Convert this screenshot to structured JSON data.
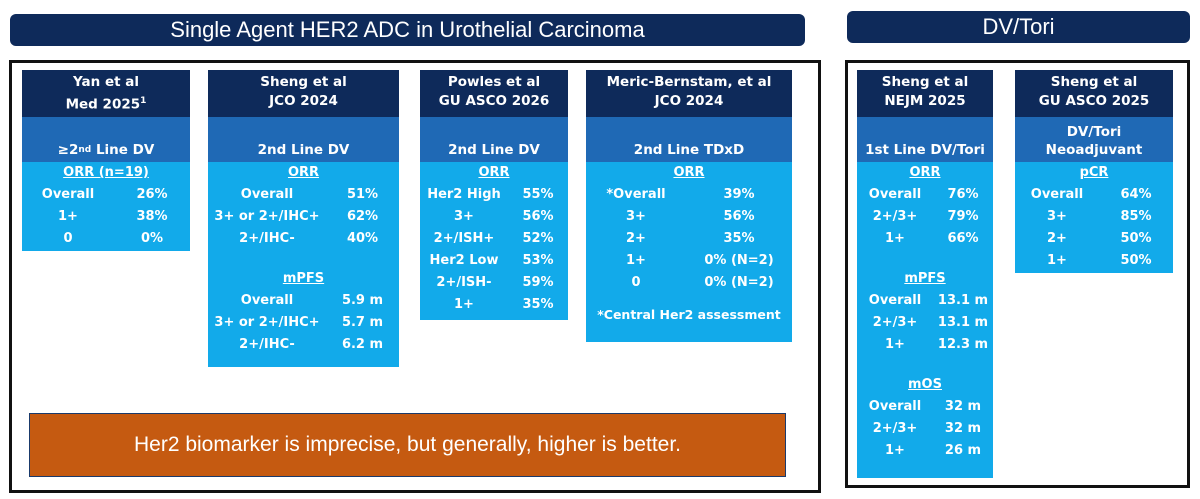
{
  "left_banner": "Single Agent HER2 ADC in Urothelial Carcinoma",
  "right_banner": "DV/Tori",
  "callout": "Her2 biomarker is imprecise, but generally, higher is better.",
  "yan": {
    "head1": "Yan et al",
    "head2": "Med 2025",
    "head2_sup": "1",
    "sub_prefix": "≥2",
    "sub_sup": "nd",
    "sub_suffix": " Line DV",
    "orr_label": "ORR (n=19)",
    "rows": [
      {
        "k": "Overall",
        "v": "26%"
      },
      {
        "k": "1+",
        "v": "38%"
      },
      {
        "k": "0",
        "v": "0%"
      }
    ]
  },
  "sheng_jco": {
    "head1": "Sheng et al",
    "head2": "JCO 2024",
    "sub": "2nd Line DV",
    "orr_label": "ORR",
    "orr_rows": [
      {
        "k": "Overall",
        "v": "51%"
      },
      {
        "k": "3+ or 2+/IHC+",
        "v": "62%"
      },
      {
        "k": "2+/IHC-",
        "v": "40%"
      }
    ],
    "pfs_label": "mPFS",
    "pfs_rows": [
      {
        "k": "Overall",
        "v": "5.9 m"
      },
      {
        "k": "3+ or 2+/IHC+",
        "v": "5.7 m"
      },
      {
        "k": "2+/IHC-",
        "v": "6.2 m"
      }
    ]
  },
  "powles": {
    "head1": "Powles et al",
    "head2": "GU ASCO 2026",
    "sub": "2nd Line DV",
    "orr_label": "ORR",
    "rows": [
      {
        "k": "Her2 High",
        "v": "55%"
      },
      {
        "k": "3+",
        "v": "56%"
      },
      {
        "k": "2+/ISH+",
        "v": "52%"
      },
      {
        "k": "Her2 Low",
        "v": "53%"
      },
      {
        "k": "2+/ISH-",
        "v": "59%"
      },
      {
        "k": "1+",
        "v": "35%"
      }
    ]
  },
  "meric": {
    "head1": "Meric-Bernstam, et al",
    "head2": "JCO 2024",
    "sub": "2nd Line TDxD",
    "orr_label": "ORR",
    "rows": [
      {
        "k": "*Overall",
        "v": "39%"
      },
      {
        "k": "3+",
        "v": "56%"
      },
      {
        "k": "2+",
        "v": "35%"
      },
      {
        "k": "1+",
        "v": "0% (N=2)"
      },
      {
        "k": "0",
        "v": "0% (N=2)"
      }
    ],
    "note": "*Central Her2 assessment"
  },
  "sheng_nejm": {
    "head1": "Sheng et al",
    "head2": "NEJM 2025",
    "sub": "1st Line DV/Tori",
    "orr_label": "ORR",
    "orr_rows": [
      {
        "k": "Overall",
        "v": "76%"
      },
      {
        "k": "2+/3+",
        "v": "79%"
      },
      {
        "k": "1+",
        "v": "66%"
      }
    ],
    "pfs_label": "mPFS",
    "pfs_rows": [
      {
        "k": "Overall",
        "v": "13.1 m"
      },
      {
        "k": "2+/3+",
        "v": "13.1 m"
      },
      {
        "k": "1+",
        "v": "12.3 m"
      }
    ],
    "os_label": "mOS",
    "os_rows": [
      {
        "k": "Overall",
        "v": "32 m"
      },
      {
        "k": "2+/3+",
        "v": "32 m"
      },
      {
        "k": "1+",
        "v": "26 m"
      }
    ]
  },
  "sheng_gu": {
    "head1": "Sheng et al",
    "head2": "GU ASCO 2025",
    "sub1": "DV/Tori",
    "sub2": "Neoadjuvant",
    "pcr_label": "pCR",
    "rows": [
      {
        "k": "Overall",
        "v": "64%"
      },
      {
        "k": "3+",
        "v": "85%"
      },
      {
        "k": "2+",
        "v": "50%"
      },
      {
        "k": "1+",
        "v": "50%"
      }
    ]
  }
}
